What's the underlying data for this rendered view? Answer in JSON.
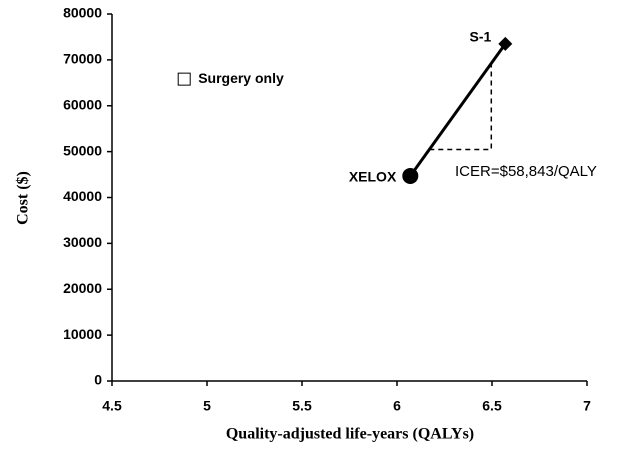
{
  "chart_data": {
    "type": "scatter",
    "xlabel": "Quality-adjusted life-years (QALYs)",
    "ylabel": "Cost ($)",
    "xlim": [
      4.5,
      7
    ],
    "xticks": [
      4.5,
      5,
      5.5,
      6,
      6.5,
      7
    ],
    "ylim": [
      0,
      80000
    ],
    "yticks": [
      0,
      10000,
      20000,
      30000,
      40000,
      50000,
      60000,
      70000,
      80000
    ],
    "series": [
      {
        "name": "Surgery only",
        "color": "#000000",
        "marker": "square",
        "x": [
          4.88
        ],
        "values": [
          65800
        ]
      },
      {
        "name": "XELOX",
        "color": "#000000",
        "marker": "circle",
        "x": [
          6.07
        ],
        "values": [
          44700
        ]
      },
      {
        "name": "S-1",
        "color": "#000000",
        "marker": "diamond",
        "x": [
          6.57
        ],
        "values": [
          73500
        ]
      }
    ],
    "annotation": "ICER=$58,843/QALY"
  }
}
